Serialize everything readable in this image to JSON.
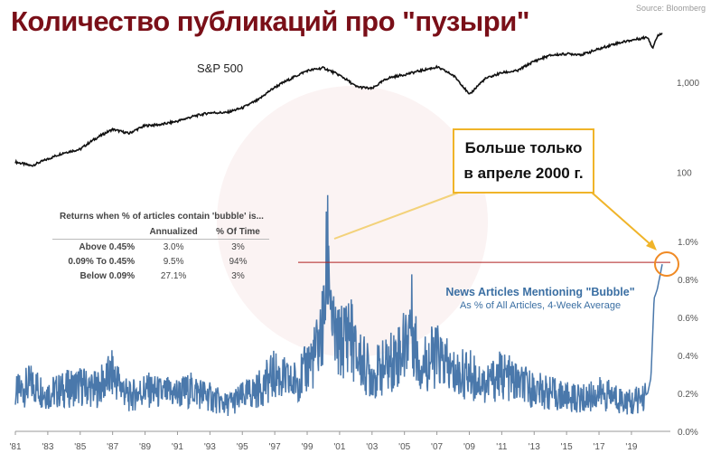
{
  "title": "Количество публикаций про \"пузыри\"",
  "source": "Source: Bloomberg",
  "sp_label": "S&P 500",
  "callout": {
    "line1": "Больше только",
    "line2": "в апреле 2000 г."
  },
  "legend": {
    "line1": "News Articles Mentioning \"Bubble\"",
    "line2": "As % of All Articles, 4-Week Average"
  },
  "table": {
    "caption": "Returns when % of articles contain 'bubble' is...",
    "headers": [
      "",
      "Annualized",
      "% Of Time"
    ],
    "rows": [
      {
        "label": "Above 0.45%",
        "annualized": "3.0%",
        "time": "3%"
      },
      {
        "label": "0.09% To 0.45%",
        "annualized": "9.5%",
        "time": "94%"
      },
      {
        "label": "Below 0.09%",
        "annualized": "27.1%",
        "time": "3%"
      }
    ]
  },
  "colors": {
    "title": "#7a0f18",
    "sp500": "#111111",
    "bubble": "#4a78ab",
    "callout_border": "#f0b429",
    "hline": "#b02020"
  },
  "chart_data": [
    {
      "type": "line",
      "series": [
        {
          "name": "S&P 500",
          "x": [
            1981,
            1982,
            1983,
            1984,
            1985,
            1986,
            1987,
            1988,
            1989,
            1990,
            1991,
            1992,
            1993,
            1994,
            1995,
            1996,
            1997,
            1998,
            1999,
            2000,
            2001,
            2002,
            2003,
            2004,
            2005,
            2006,
            2007,
            2008,
            2009,
            2010,
            2011,
            2012,
            2013,
            2014,
            2015,
            2016,
            2017,
            2018,
            2019,
            2020,
            2020.3,
            2020.6,
            2020.9
          ],
          "y": [
            130,
            118,
            140,
            165,
            180,
            240,
            300,
            270,
            330,
            340,
            370,
            420,
            460,
            460,
            520,
            640,
            880,
            1100,
            1350,
            1450,
            1200,
            900,
            850,
            1120,
            1220,
            1350,
            1480,
            1200,
            720,
            1100,
            1280,
            1350,
            1720,
            2000,
            2080,
            2050,
            2350,
            2700,
            2950,
            3200,
            2400,
            3250,
            3600
          ]
        }
      ],
      "yscale": "log",
      "yticks": [
        {
          "value": 100,
          "label": "100"
        },
        {
          "value": 1000,
          "label": "1,000"
        }
      ],
      "ylim": [
        40,
        5200
      ]
    },
    {
      "type": "line",
      "series": [
        {
          "name": "News Articles Mentioning \"Bubble\"",
          "x": [
            1981,
            1982,
            1983,
            1984,
            1985,
            1986,
            1987,
            1988,
            1989,
            1990,
            1991,
            1992,
            1993,
            1994,
            1995,
            1996,
            1997,
            1998,
            1998.8,
            1999,
            1999.5,
            2000.0,
            2000.3,
            2000.6,
            2001,
            2001.6,
            2002,
            2002.5,
            2003,
            2004,
            2005,
            2005.4,
            2005.8,
            2006,
            2007,
            2008,
            2009,
            2010,
            2011,
            2012,
            2013,
            2014,
            2015,
            2016,
            2017,
            2018,
            2019,
            2019.7,
            2020.0,
            2020.2,
            2020.4,
            2020.6,
            2020.9
          ],
          "y": [
            0.2,
            0.25,
            0.2,
            0.22,
            0.24,
            0.22,
            0.3,
            0.18,
            0.22,
            0.2,
            0.2,
            0.22,
            0.18,
            0.14,
            0.18,
            0.22,
            0.3,
            0.25,
            0.3,
            0.35,
            0.4,
            0.55,
            0.98,
            0.5,
            0.45,
            0.55,
            0.4,
            0.35,
            0.3,
            0.35,
            0.45,
            0.6,
            0.4,
            0.35,
            0.4,
            0.3,
            0.3,
            0.25,
            0.3,
            0.25,
            0.22,
            0.2,
            0.18,
            0.17,
            0.2,
            0.18,
            0.15,
            0.18,
            0.2,
            0.28,
            0.7,
            0.75,
            0.88
          ]
        }
      ],
      "ylim": [
        0.0,
        1.0
      ],
      "yticks": [
        0.0,
        0.2,
        0.4,
        0.6,
        0.8,
        1.0
      ],
      "ytick_labels": [
        "0.0%",
        "0.2%",
        "0.4%",
        "0.6%",
        "0.8%",
        "1.0%"
      ],
      "hline": 0.89,
      "xlim": [
        1981,
        2021.4
      ],
      "xticks": [
        1981,
        1983,
        1985,
        1987,
        1989,
        1991,
        1993,
        1995,
        1997,
        1999,
        2001,
        2003,
        2005,
        2007,
        2009,
        2011,
        2013,
        2015,
        2017,
        2019
      ],
      "xtick_labels": [
        "'81",
        "'83",
        "'85",
        "'87",
        "'89",
        "'91",
        "'93",
        "'95",
        "'97",
        "'99",
        "'01",
        "'03",
        "'05",
        "'07",
        "'09",
        "'11",
        "'13",
        "'15",
        "'17",
        "'19"
      ]
    }
  ]
}
